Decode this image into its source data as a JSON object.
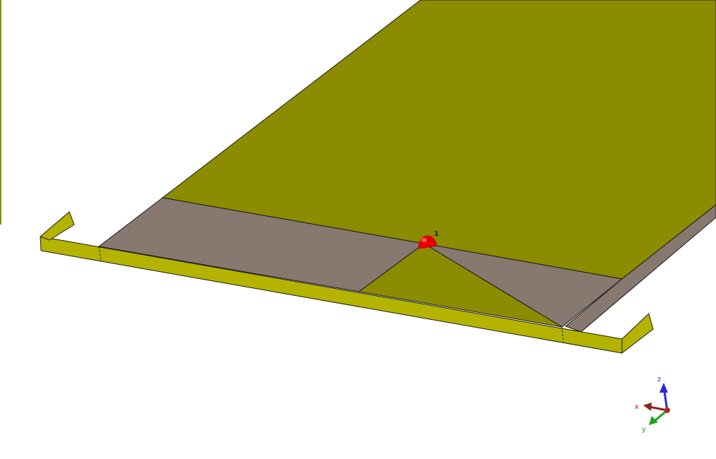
{
  "scene": {
    "port_label": "1",
    "axes": {
      "x_label": "x",
      "y_label": "y",
      "z_label": "z"
    }
  },
  "colors": {
    "background": "#ffffff",
    "substrate_top": "#8c8c00",
    "metal_strip": "#b4b400",
    "ground_face": "#877870",
    "edge_line": "#1a1a1a",
    "port": "#e60000",
    "axis_x": "#8b2323",
    "axis_y": "#1fa01f",
    "axis_z": "#2a2ad6"
  }
}
